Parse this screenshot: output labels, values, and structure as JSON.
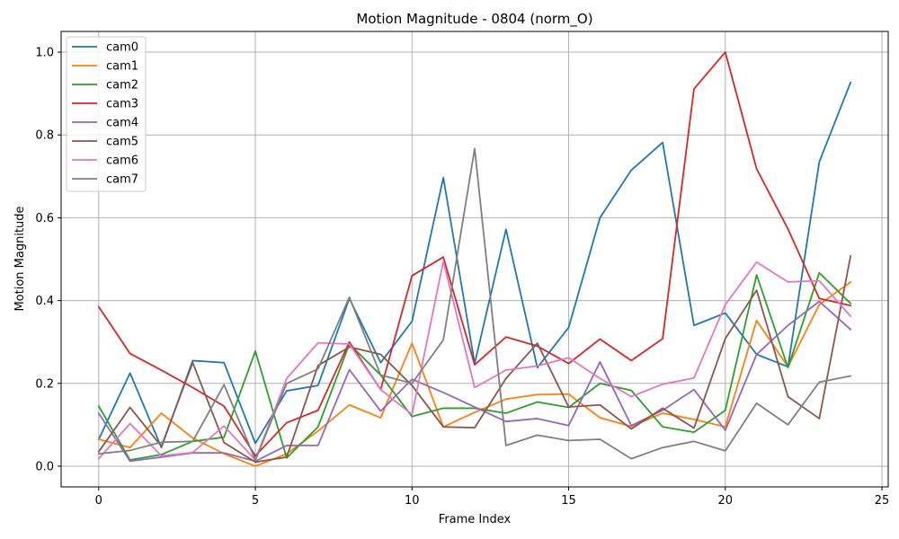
{
  "chart_data": {
    "type": "line",
    "title": "Motion Magnitude - 0804 (norm_O)",
    "xlabel": "Frame Index",
    "ylabel": "Motion Magnitude",
    "xlim": [
      -1.2,
      25.2
    ],
    "ylim": [
      -0.05,
      1.05
    ],
    "xticks": [
      0,
      5,
      10,
      15,
      20,
      25
    ],
    "yticks": [
      0.0,
      0.2,
      0.4,
      0.6,
      0.8,
      1.0
    ],
    "grid": true,
    "legend_position": "top-left",
    "x": [
      0,
      1,
      2,
      3,
      4,
      5,
      6,
      7,
      8,
      9,
      10,
      11,
      12,
      13,
      14,
      15,
      16,
      17,
      18,
      19,
      20,
      21,
      22,
      23,
      24
    ],
    "series": [
      {
        "name": "cam0",
        "color": "#1f77b4",
        "values": [
          0.065,
          0.225,
          0.045,
          0.255,
          0.25,
          0.055,
          0.182,
          0.195,
          0.405,
          0.25,
          0.35,
          0.697,
          0.248,
          0.572,
          0.238,
          0.335,
          0.6,
          0.715,
          0.782,
          0.34,
          0.37,
          0.27,
          0.24,
          0.735,
          0.927
        ]
      },
      {
        "name": "cam1",
        "color": "#ff7f0e",
        "values": [
          0.065,
          0.045,
          0.128,
          0.068,
          0.03,
          0.0,
          0.03,
          0.085,
          0.148,
          0.117,
          0.297,
          0.095,
          0.13,
          0.162,
          0.173,
          0.174,
          0.117,
          0.096,
          0.128,
          0.113,
          0.095,
          0.352,
          0.24,
          0.39,
          0.445
        ]
      },
      {
        "name": "cam2",
        "color": "#2ca02c",
        "values": [
          0.145,
          0.015,
          0.028,
          0.06,
          0.07,
          0.278,
          0.02,
          0.095,
          0.295,
          0.22,
          0.12,
          0.14,
          0.14,
          0.128,
          0.155,
          0.142,
          0.2,
          0.183,
          0.095,
          0.082,
          0.135,
          0.462,
          0.238,
          0.467,
          0.393
        ]
      },
      {
        "name": "cam3",
        "color": "#d62728",
        "values": [
          0.385,
          0.272,
          0.232,
          0.19,
          0.145,
          0.025,
          0.105,
          0.135,
          0.3,
          0.185,
          0.46,
          0.505,
          0.245,
          0.312,
          0.29,
          0.248,
          0.307,
          0.255,
          0.308,
          0.911,
          1.0,
          0.718,
          0.573,
          0.405,
          0.388
        ]
      },
      {
        "name": "cam4",
        "color": "#9467bd",
        "values": [
          0.128,
          0.012,
          0.022,
          0.032,
          0.032,
          0.012,
          0.05,
          0.05,
          0.233,
          0.133,
          0.21,
          0.178,
          0.143,
          0.108,
          0.115,
          0.098,
          0.252,
          0.098,
          0.135,
          0.185,
          0.087,
          0.27,
          0.34,
          0.398,
          0.33
        ]
      },
      {
        "name": "cam5",
        "color": "#8c564b",
        "values": [
          0.035,
          0.142,
          0.048,
          0.25,
          0.057,
          0.01,
          0.022,
          0.243,
          0.288,
          0.27,
          0.195,
          0.095,
          0.093,
          0.212,
          0.297,
          0.143,
          0.148,
          0.09,
          0.14,
          0.092,
          0.308,
          0.425,
          0.168,
          0.115,
          0.508
        ]
      },
      {
        "name": "cam6",
        "color": "#e377c2",
        "values": [
          0.018,
          0.103,
          0.025,
          0.033,
          0.097,
          0.015,
          0.212,
          0.298,
          0.295,
          0.185,
          0.125,
          0.495,
          0.19,
          0.232,
          0.242,
          0.262,
          0.212,
          0.168,
          0.198,
          0.213,
          0.39,
          0.493,
          0.445,
          0.448,
          0.362
        ]
      },
      {
        "name": "cam7",
        "color": "#7f7f7f",
        "values": [
          0.03,
          0.038,
          0.058,
          0.06,
          0.197,
          0.015,
          0.2,
          0.235,
          0.408,
          0.22,
          0.2,
          0.305,
          0.767,
          0.05,
          0.075,
          0.062,
          0.065,
          0.018,
          0.045,
          0.06,
          0.037,
          0.152,
          0.1,
          0.203,
          0.218
        ]
      }
    ]
  }
}
